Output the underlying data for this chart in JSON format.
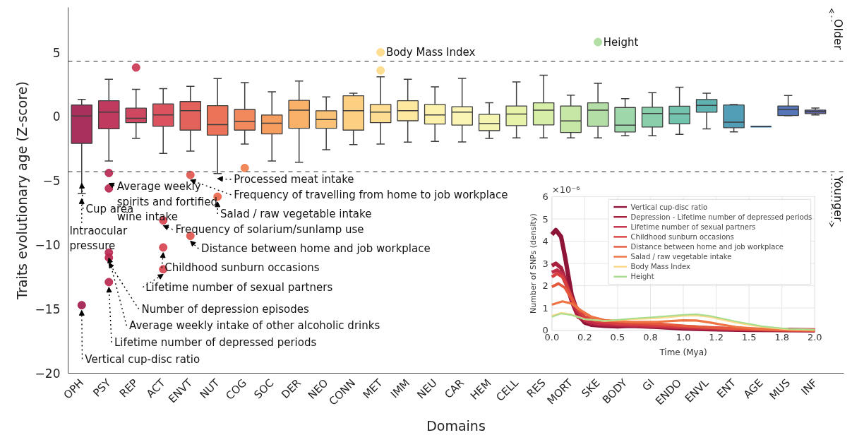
{
  "chart_data": [
    {
      "type": "box",
      "xlabel": "Domains",
      "ylabel": "Traits evolutionary age (Z-score)",
      "categories": [
        "OPH",
        "PSY",
        "REP",
        "ACT",
        "ENVT",
        "NUT",
        "COG",
        "SOC",
        "DER",
        "NEO",
        "CONN",
        "MET",
        "IMM",
        "NEU",
        "CAR",
        "HEM",
        "CELL",
        "RES",
        "MORT",
        "SKE",
        "BODY",
        "GI",
        "ENDO",
        "ENVL",
        "ENT",
        "AGE",
        "MUS",
        "INF"
      ],
      "colors": [
        "#a0184a",
        "#b8254d",
        "#c93450",
        "#d6404e",
        "#e0524a",
        "#ea6446",
        "#f07c4a",
        "#f5934f",
        "#f8a85a",
        "#fabb67",
        "#fcca75",
        "#fdd985",
        "#fee595",
        "#fdefa5",
        "#faf4ad",
        "#f2f4a8",
        "#e4f2a0",
        "#d3ec9c",
        "#c0e49b",
        "#abdc9c",
        "#94d3a0",
        "#7ccaa3",
        "#64bda6",
        "#4faaa8",
        "#3f93ae",
        "#3a7db5",
        "#4268b0",
        "#5055a5"
      ],
      "boxes": [
        {
          "low": -6.0,
          "q1": -2.09,
          "median": 0.04,
          "q3": 0.9,
          "high": 1.33,
          "outliers": [
            -14.7
          ]
        },
        {
          "low": -3.47,
          "q1": -0.96,
          "median": 0.35,
          "q3": 1.23,
          "high": 2.9,
          "outliers": [
            -4.4,
            -5.6,
            -10.6,
            -11.0,
            -12.9
          ]
        },
        {
          "low": -1.7,
          "q1": -0.47,
          "median": -0.14,
          "q3": 0.65,
          "high": 2.12,
          "outliers": [
            3.82
          ]
        },
        {
          "low": -2.88,
          "q1": -0.76,
          "median": 0.12,
          "q3": 0.98,
          "high": 2.17,
          "outliers": [
            -8.1,
            -10.2,
            -11.9
          ]
        },
        {
          "low": -2.69,
          "q1": -1.06,
          "median": 0.45,
          "q3": 1.17,
          "high": 2.35,
          "outliers": [
            -4.55,
            -9.3
          ]
        },
        {
          "low": -4.44,
          "q1": -1.45,
          "median": -0.63,
          "q3": 0.84,
          "high": 2.96,
          "outliers": [
            -6.25
          ]
        },
        {
          "low": -2.15,
          "q1": -1.06,
          "median": -0.39,
          "q3": 0.55,
          "high": 2.64,
          "outliers": [
            -4.01
          ]
        },
        {
          "low": -3.47,
          "q1": -1.35,
          "median": -0.53,
          "q3": 0.12,
          "high": 1.92
        },
        {
          "low": -3.56,
          "q1": -0.92,
          "median": 0.49,
          "q3": 1.26,
          "high": 2.76
        },
        {
          "low": -2.58,
          "q1": -0.92,
          "median": -0.24,
          "q3": 0.45,
          "high": 1.53
        },
        {
          "low": -2.19,
          "q1": -1.06,
          "median": 0.45,
          "q3": 1.62,
          "high": 1.82
        },
        {
          "low": -2.15,
          "q1": -0.47,
          "median": 0.35,
          "q3": 0.94,
          "high": 3.09,
          "outliers": [
            3.59,
            5.0
          ]
        },
        {
          "low": -2.0,
          "q1": -0.33,
          "median": 0.45,
          "q3": 1.23,
          "high": 2.9
        },
        {
          "low": -1.94,
          "q1": -0.59,
          "median": 0.12,
          "q3": 0.94,
          "high": 2.31
        },
        {
          "low": -1.98,
          "q1": -0.67,
          "median": 0.34,
          "q3": 0.76,
          "high": 2.97
        },
        {
          "low": -1.71,
          "q1": -1.1,
          "median": -0.55,
          "q3": 0.17,
          "high": 1.07
        },
        {
          "low": -1.67,
          "q1": -0.71,
          "median": 0.19,
          "q3": 0.82,
          "high": 2.7
        },
        {
          "low": -1.67,
          "q1": -0.65,
          "median": 0.5,
          "q3": 1.07,
          "high": 3.22
        },
        {
          "low": -1.67,
          "q1": -1.24,
          "median": -0.34,
          "q3": 0.82,
          "high": 1.67
        },
        {
          "low": -1.67,
          "q1": -0.76,
          "median": 0.5,
          "q3": 1.07,
          "high": 2.59,
          "outliers": [
            5.8
          ]
        },
        {
          "low": -1.5,
          "q1": -1.2,
          "median": -0.67,
          "q3": 0.7,
          "high": 1.39
        },
        {
          "low": -1.5,
          "q1": -0.82,
          "median": 0.23,
          "q3": 0.72,
          "high": 1.85
        },
        {
          "low": -1.39,
          "q1": -0.57,
          "median": 0.21,
          "q3": 0.8,
          "high": 2.28
        },
        {
          "low": -0.97,
          "q1": 0.34,
          "median": 0.87,
          "q3": 1.33,
          "high": 1.81
        },
        {
          "low": -1.2,
          "q1": -0.87,
          "median": -0.44,
          "q3": 0.9,
          "high": 0.93
        },
        {
          "low": -0.78,
          "q1": -0.78,
          "median": -0.78,
          "q3": -0.78,
          "high": -0.78
        },
        {
          "low": 0.07,
          "q1": 0.07,
          "median": 0.55,
          "q3": 0.82,
          "high": 1.64
        },
        {
          "low": 0.13,
          "q1": 0.23,
          "median": 0.38,
          "q3": 0.5,
          "high": 0.66
        }
      ],
      "ylim": [
        -20,
        8.5
      ],
      "yticks": [
        {
          "value": -20,
          "label": "−20"
        },
        {
          "value": -15,
          "label": "−15"
        },
        {
          "value": -10,
          "label": "−10"
        },
        {
          "value": -5,
          "label": "−5"
        },
        0,
        5
      ],
      "ref_lines": [
        {
          "axis": "y",
          "value": 4.3,
          "color": "#555555",
          "line_style": "dashed"
        },
        {
          "axis": "y",
          "value": -4.3,
          "color": "#555555",
          "line_style": "dashed"
        }
      ],
      "annotations": [
        "Vertical cup-disc ratio",
        {
          "text": "Cup area",
          "x": "OPH",
          "y": -4.8
        },
        "Intraocular\npressure",
        "Average weekly\nspirits and fortified\nwine intake",
        {
          "text": "Processed meat intake",
          "x": "NUT",
          "y": -4.44
        },
        "Frequency of travelling from home to job workplace",
        "Salad / raw vegetable intake",
        "Frequency of solarium/sunlamp use",
        "Distance between home and job workplace",
        "Childhood sunburn occasions",
        "Lifetime number of sexual partners",
        "Number of depression episodes",
        "Average weekly intake of other alcoholic drinks",
        "Lifetime number of depressed periods",
        "Body Mass Index",
        "Height",
        "Older",
        "Younger"
      ]
    },
    {
      "type": "line",
      "xlabel": "Time (Mya)",
      "ylabel": "Number of SNPs (density)",
      "annotations": [
        "×10⁻⁶"
      ],
      "xlim": [
        0,
        2
      ],
      "ylim": [
        0,
        6
      ],
      "xticks": [
        {
          "value": 0,
          "label": "0.0"
        },
        {
          "value": 0.25,
          "label": "0.2"
        },
        {
          "value": 0.5,
          "label": "0.5"
        },
        {
          "value": 0.75,
          "label": "0.8"
        },
        {
          "value": 1.0,
          "label": "1.0"
        },
        {
          "value": 1.25,
          "label": "1.2"
        },
        {
          "value": 1.5,
          "label": "1.5"
        },
        {
          "value": 1.75,
          "label": "1.8"
        },
        {
          "value": 2.0,
          "label": "2.0"
        }
      ],
      "yticks": [
        0,
        1,
        2,
        3,
        4,
        5,
        6
      ],
      "grid": true,
      "legend": "top right",
      "series": [
        {
          "name": "Vertical cup-disc ratio",
          "color": "#8e1538",
          "x": [
            0,
            0.03,
            0.07,
            0.1,
            0.15,
            0.2,
            0.25,
            0.3,
            0.4,
            0.5,
            0.6,
            0.8,
            1.0,
            1.2,
            1.5,
            2.0
          ],
          "values": [
            4.3,
            4.5,
            4.2,
            3.3,
            1.6,
            0.7,
            0.35,
            0.25,
            0.2,
            0.18,
            0.2,
            0.15,
            0.08,
            0.05,
            0.02,
            0.0
          ]
        },
        {
          "name": "Depression - Lifetime number of depressed periods",
          "color": "#a8203f",
          "x": [
            0,
            0.03,
            0.07,
            0.1,
            0.15,
            0.2,
            0.3,
            0.4,
            0.5,
            0.7,
            0.9,
            1.1,
            1.4,
            1.7,
            2.0
          ],
          "values": [
            2.9,
            3.0,
            2.8,
            2.3,
            1.3,
            0.6,
            0.3,
            0.25,
            0.22,
            0.2,
            0.15,
            0.1,
            0.05,
            0.02,
            0.0
          ]
        },
        {
          "name": "Lifetime number of sexual partners",
          "color": "#c42d48",
          "x": [
            0,
            0.04,
            0.08,
            0.12,
            0.18,
            0.25,
            0.35,
            0.5,
            0.7,
            0.9,
            1.1,
            1.4,
            1.7,
            2.0
          ],
          "values": [
            2.6,
            2.7,
            2.5,
            1.9,
            1.0,
            0.45,
            0.3,
            0.25,
            0.2,
            0.15,
            0.1,
            0.05,
            0.02,
            0.0
          ]
        },
        {
          "name": "Childhood sunburn occasions",
          "color": "#d8403f",
          "x": [
            0,
            0.04,
            0.08,
            0.12,
            0.18,
            0.25,
            0.35,
            0.5,
            0.7,
            0.9,
            1.1,
            1.4,
            1.7,
            2.0
          ],
          "values": [
            2.4,
            2.55,
            2.4,
            1.9,
            1.1,
            0.6,
            0.4,
            0.3,
            0.25,
            0.2,
            0.15,
            0.07,
            0.02,
            0.0
          ]
        },
        {
          "name": "Distance between home and job workplace",
          "color": "#e4583b",
          "x": [
            0,
            0.05,
            0.1,
            0.15,
            0.2,
            0.3,
            0.4,
            0.6,
            0.8,
            1.0,
            1.2,
            1.5,
            1.8,
            2.0
          ],
          "values": [
            1.95,
            2.1,
            1.9,
            1.4,
            0.95,
            0.6,
            0.45,
            0.35,
            0.3,
            0.2,
            0.12,
            0.05,
            0.01,
            0.0
          ]
        },
        {
          "name": "Salad / raw vegetable intake",
          "color": "#ee7443",
          "x": [
            0,
            0.08,
            0.15,
            0.22,
            0.3,
            0.4,
            0.6,
            0.8,
            1.0,
            1.1,
            1.2,
            1.4,
            1.6,
            1.8,
            2.0
          ],
          "values": [
            1.15,
            1.3,
            1.2,
            0.9,
            0.6,
            0.45,
            0.38,
            0.38,
            0.45,
            0.44,
            0.35,
            0.15,
            0.05,
            0.01,
            0.0
          ]
        },
        {
          "name": "Body Mass Index",
          "color": "#fbd98a",
          "x": [
            0,
            0.07,
            0.15,
            0.25,
            0.4,
            0.6,
            0.8,
            1.0,
            1.1,
            1.2,
            1.4,
            1.6,
            1.8,
            2.0
          ],
          "values": [
            0.65,
            0.78,
            0.7,
            0.5,
            0.42,
            0.5,
            0.55,
            0.65,
            0.67,
            0.6,
            0.35,
            0.15,
            0.05,
            0.02
          ]
        },
        {
          "name": "Height",
          "color": "#a6dc8c",
          "x": [
            0,
            0.07,
            0.15,
            0.25,
            0.4,
            0.6,
            0.8,
            1.0,
            1.1,
            1.2,
            1.4,
            1.6,
            1.8,
            2.0
          ],
          "values": [
            0.6,
            0.75,
            0.68,
            0.5,
            0.42,
            0.52,
            0.6,
            0.7,
            0.72,
            0.65,
            0.4,
            0.18,
            0.06,
            0.02
          ]
        }
      ]
    }
  ]
}
